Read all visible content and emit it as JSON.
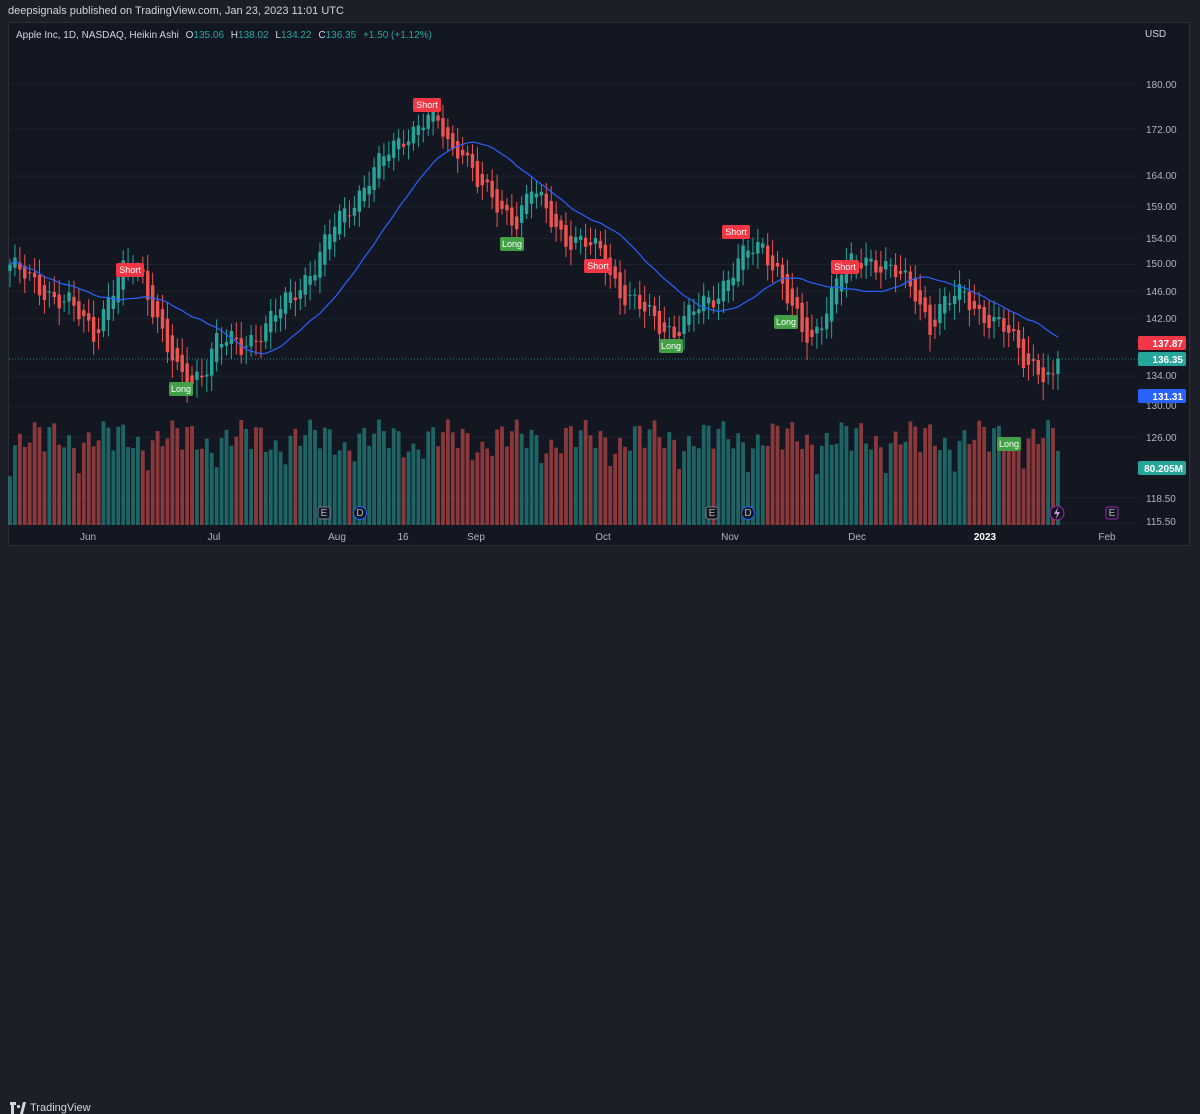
{
  "header": {
    "published_text": "deepsignals published on TradingView.com, Jan 23, 2023 11:01 UTC"
  },
  "legend": {
    "symbol": "Apple Inc, 1D, NASDAQ, Heikin Ashi",
    "o_label": "O",
    "o_value": "135.06",
    "h_label": "H",
    "h_value": "138.02",
    "l_label": "L",
    "l_value": "134.22",
    "c_label": "C",
    "c_value": "136.35",
    "change": "+1.50 (+1.12%)"
  },
  "currency": "USD",
  "footer": {
    "brand": "TradingView"
  },
  "colors": {
    "up": "#26a69a",
    "down": "#ef5350",
    "ma": "#2962ff",
    "long_badge": "#43a047",
    "short_badge": "#f23645",
    "bg": "#131722"
  },
  "chart_data": {
    "type": "candlestick",
    "title": "Apple Inc, 1D, NASDAQ, Heikin Ashi",
    "y_ticks": [
      "180.00",
      "172.00",
      "164.00",
      "159.00",
      "154.00",
      "150.00",
      "146.00",
      "142.00",
      "134.00",
      "130.00",
      "126.00",
      "118.50",
      "115.50"
    ],
    "x_ticks": [
      "Jun",
      "Jul",
      "Aug",
      "16",
      "Sep",
      "Oct",
      "Nov",
      "Dec",
      "2023",
      "Feb"
    ],
    "y_scale": "log",
    "price_tags": [
      {
        "label": "137.87",
        "color": "#f23645"
      },
      {
        "label": "136.35",
        "color": "#26a69a"
      },
      {
        "label": "131.31",
        "color": "#2962ff"
      },
      {
        "label": "80.205M",
        "color": "#26a69a"
      }
    ],
    "signals": [
      {
        "label": "Short",
        "date": "2022-05-27",
        "price": 151.5
      },
      {
        "label": "Long",
        "date": "2022-06-16",
        "price": 131.8
      },
      {
        "label": "Short",
        "date": "2022-08-18",
        "price": 175.0
      },
      {
        "label": "Long",
        "date": "2022-09-07",
        "price": 155.0
      },
      {
        "label": "Short",
        "date": "2022-09-26",
        "price": 151.0
      },
      {
        "label": "Long",
        "date": "2022-10-13",
        "price": 138.5
      },
      {
        "label": "Short",
        "date": "2022-11-07",
        "price": 155.5
      },
      {
        "label": "Long",
        "date": "2022-11-16",
        "price": 142.0
      },
      {
        "label": "Short",
        "date": "2022-11-28",
        "price": 151.0
      },
      {
        "label": "Long",
        "date": "2023-01-06",
        "price": 125.0
      }
    ],
    "event_icons": [
      "E",
      "D",
      "E",
      "D",
      "flash",
      "E"
    ],
    "candles": {
      "open": [],
      "high": [],
      "low": [],
      "close": [],
      "volume": []
    },
    "ma_line_name": "",
    "last_price": 136.35
  }
}
